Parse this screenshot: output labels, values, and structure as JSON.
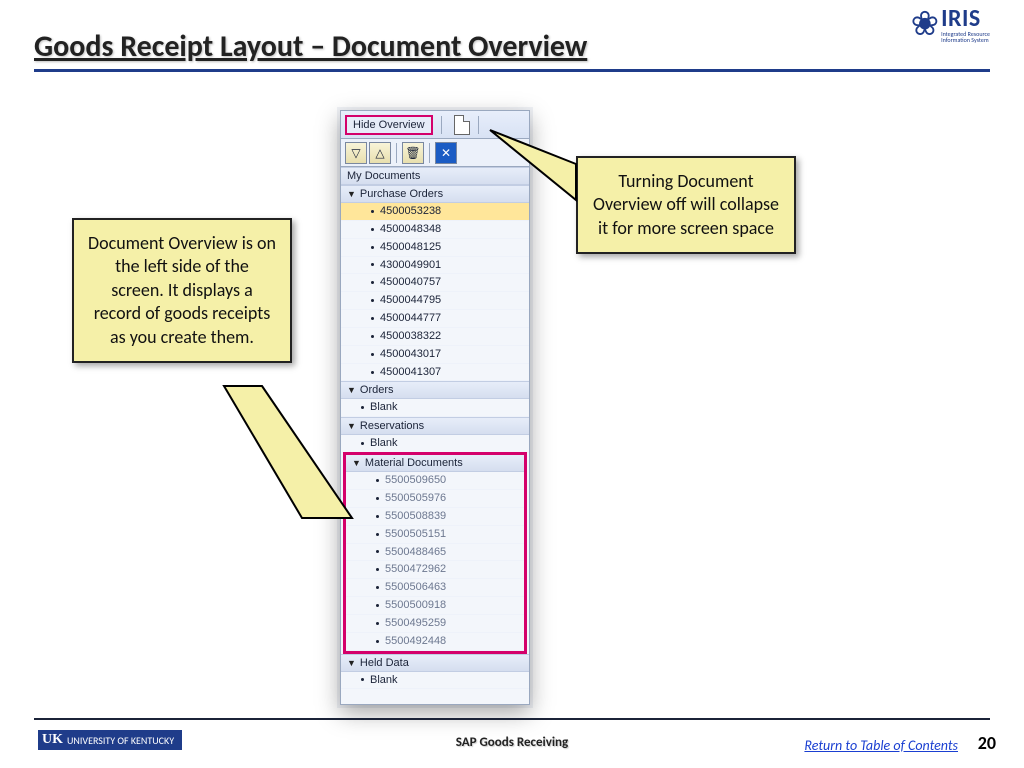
{
  "title": "Goods Receipt Layout – Document Overview",
  "logo": {
    "main": "IRIS",
    "sub1": "Integrated Resource",
    "sub2": "Information System"
  },
  "panel": {
    "hide_label": "Hide Overview",
    "my_docs": "My Documents",
    "sections": {
      "purchase_orders": {
        "label": "Purchase Orders",
        "items": [
          "4500053238",
          "4500048348",
          "4500048125",
          "4300049901",
          "4500040757",
          "4500044795",
          "4500044777",
          "4500038322",
          "4500043017",
          "4500041307"
        ]
      },
      "orders": {
        "label": "Orders",
        "blank": "Blank"
      },
      "reservations": {
        "label": "Reservations",
        "blank": "Blank"
      },
      "material_docs": {
        "label": "Material Documents",
        "items": [
          "5500509650",
          "5500505976",
          "5500508839",
          "5500505151",
          "5500488465",
          "5500472962",
          "5500506463",
          "5500500918",
          "5500495259",
          "5500492448"
        ]
      },
      "held_data": {
        "label": "Held Data",
        "blank": "Blank"
      }
    }
  },
  "callouts": {
    "left": "Document Overview is on the left side of the screen. It displays a record of goods receipts as you create them.",
    "right": "Turning Document Overview off will collapse it for more screen space"
  },
  "footer": {
    "uk": "UK",
    "uk_text": "UNIVERSITY OF KENTUCKY",
    "center": "SAP Goods Receiving",
    "link": "Return to Table of Contents",
    "page": "20"
  },
  "colors": {
    "highlight": "#d4006b",
    "brand": "#1f3c8a",
    "note": "#f5f0a8"
  }
}
